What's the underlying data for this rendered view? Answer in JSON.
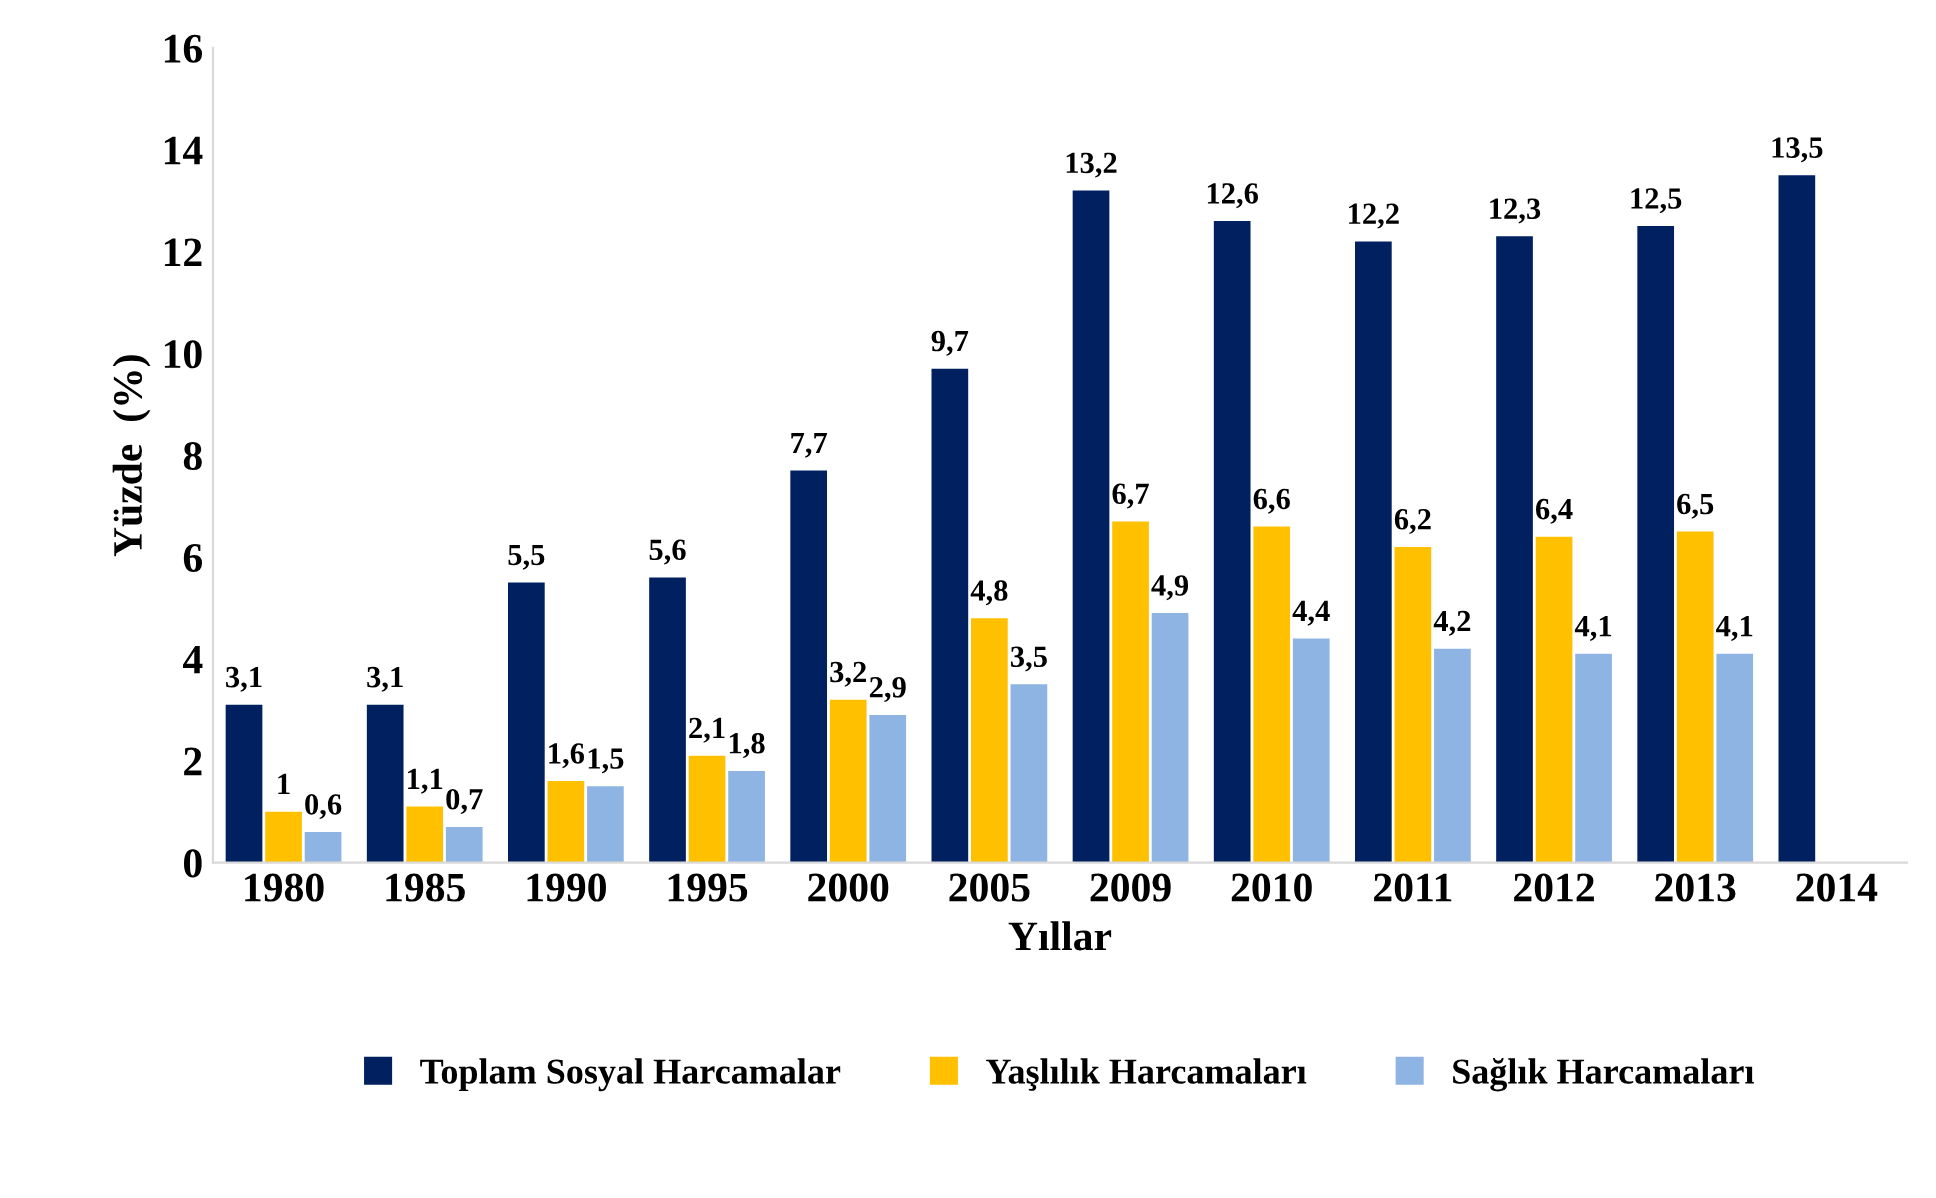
{
  "chart_data": {
    "type": "bar",
    "xlabel": "Yıllar",
    "ylabel": "Yüzde  (%)",
    "categories": [
      "1980",
      "1985",
      "1990",
      "1995",
      "2000",
      "2005",
      "2009",
      "2010",
      "2011",
      "2012",
      "2013",
      "2014"
    ],
    "series": [
      {
        "name": "Toplam Sosyal Harcamalar",
        "color": "#002060",
        "values": [
          3.1,
          3.1,
          5.5,
          5.6,
          7.7,
          9.7,
          13.2,
          12.6,
          12.2,
          12.3,
          12.5,
          13.5
        ],
        "value_labels": [
          "3,1",
          "3,1",
          "5,5",
          "5,6",
          "7,7",
          "9,7",
          "13,2",
          "12,6",
          "12,2",
          "12,3",
          "12,5",
          "13,5"
        ]
      },
      {
        "name": "Yaşlılık Harcamaları",
        "color": "#ffc000",
        "values": [
          1,
          1.1,
          1.6,
          2.1,
          3.2,
          4.8,
          6.7,
          6.6,
          6.2,
          6.4,
          6.5,
          null
        ],
        "value_labels": [
          "1",
          "1,1",
          "1,6",
          "2,1",
          "3,2",
          "4,8",
          "6,7",
          "6,6",
          "6,2",
          "6,4",
          "6,5",
          null
        ]
      },
      {
        "name": "Sağlık Harcamaları",
        "color": "#8eb4e3",
        "values": [
          0.6,
          0.7,
          1.5,
          1.8,
          2.9,
          3.5,
          4.9,
          4.4,
          4.2,
          4.1,
          4.1,
          null
        ],
        "value_labels": [
          "0,6",
          "0,7",
          "1,5",
          "1,8",
          "2,9",
          "3,5",
          "4,9",
          "4,4",
          "4,2",
          "4,1",
          "4,1",
          null
        ]
      }
    ],
    "ylim": [
      0,
      16
    ],
    "yticks": [
      0,
      2,
      4,
      6,
      8,
      10,
      12,
      14,
      16
    ],
    "grid": false,
    "legend": "bottom"
  }
}
